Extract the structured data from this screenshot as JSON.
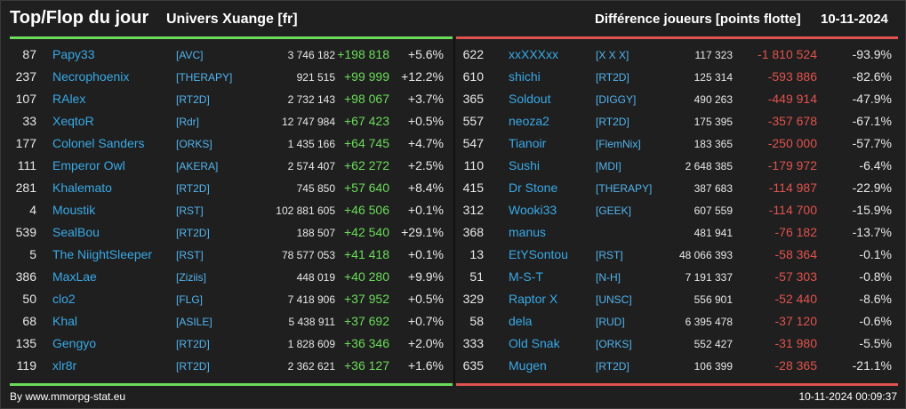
{
  "header": {
    "title": "Top/Flop du jour",
    "universe": "Univers Xuange [fr]",
    "metric": "Différence joueurs [points flotte]",
    "date": "10-11-2024"
  },
  "top": [
    {
      "rank": "87",
      "name": "Papy33",
      "alliance": "[AVC]",
      "points": "3 746 182",
      "diff": "+198 818",
      "pct": "+5.6%"
    },
    {
      "rank": "237",
      "name": "Necrophoenix",
      "alliance": "[THERAPY]",
      "points": "921 515",
      "diff": "+99 999",
      "pct": "+12.2%"
    },
    {
      "rank": "107",
      "name": "RAlex",
      "alliance": "[RT2D]",
      "points": "2 732 143",
      "diff": "+98 067",
      "pct": "+3.7%"
    },
    {
      "rank": "33",
      "name": "XeqtoR",
      "alliance": "[Rdr]",
      "points": "12 747 984",
      "diff": "+67 423",
      "pct": "+0.5%"
    },
    {
      "rank": "177",
      "name": "Colonel Sanders",
      "alliance": "[ORKS]",
      "points": "1 435 166",
      "diff": "+64 745",
      "pct": "+4.7%"
    },
    {
      "rank": "111",
      "name": "Emperor Owl",
      "alliance": "[AKERA]",
      "points": "2 574 407",
      "diff": "+62 272",
      "pct": "+2.5%"
    },
    {
      "rank": "281",
      "name": "Khalemato",
      "alliance": "[RT2D]",
      "points": "745 850",
      "diff": "+57 640",
      "pct": "+8.4%"
    },
    {
      "rank": "4",
      "name": "Moustik",
      "alliance": "[RST]",
      "points": "102 881 605",
      "diff": "+46 506",
      "pct": "+0.1%"
    },
    {
      "rank": "539",
      "name": "SealBou",
      "alliance": "[RT2D]",
      "points": "188 507",
      "diff": "+42 540",
      "pct": "+29.1%"
    },
    {
      "rank": "5",
      "name": "The NiightSleeper",
      "alliance": "[RST]",
      "points": "78 577 053",
      "diff": "+41 418",
      "pct": "+0.1%"
    },
    {
      "rank": "386",
      "name": "MaxLae",
      "alliance": "[Ziziis]",
      "points": "448 019",
      "diff": "+40 280",
      "pct": "+9.9%"
    },
    {
      "rank": "50",
      "name": "clo2",
      "alliance": "[FLG]",
      "points": "7 418 906",
      "diff": "+37 952",
      "pct": "+0.5%"
    },
    {
      "rank": "68",
      "name": "Khal",
      "alliance": "[ASILE]",
      "points": "5 438 911",
      "diff": "+37 692",
      "pct": "+0.7%"
    },
    {
      "rank": "135",
      "name": "Gengyo",
      "alliance": "[RT2D]",
      "points": "1 828 609",
      "diff": "+36 346",
      "pct": "+2.0%"
    },
    {
      "rank": "119",
      "name": "xlr8r",
      "alliance": "[RT2D]",
      "points": "2 362 621",
      "diff": "+36 127",
      "pct": "+1.6%"
    }
  ],
  "flop": [
    {
      "rank": "622",
      "name": "xxXXXxx",
      "alliance": "[X X X]",
      "points": "117 323",
      "diff": "-1 810 524",
      "pct": "-93.9%"
    },
    {
      "rank": "610",
      "name": "shichi",
      "alliance": "[RT2D]",
      "points": "125 314",
      "diff": "-593 886",
      "pct": "-82.6%"
    },
    {
      "rank": "365",
      "name": "Soldout",
      "alliance": "[DIGGY]",
      "points": "490 263",
      "diff": "-449 914",
      "pct": "-47.9%"
    },
    {
      "rank": "557",
      "name": "neoza2",
      "alliance": "[RT2D]",
      "points": "175 395",
      "diff": "-357 678",
      "pct": "-67.1%"
    },
    {
      "rank": "547",
      "name": "Tianoir",
      "alliance": "[FlemNix]",
      "points": "183 365",
      "diff": "-250 000",
      "pct": "-57.7%"
    },
    {
      "rank": "110",
      "name": "Sushi",
      "alliance": "[MDI]",
      "points": "2 648 385",
      "diff": "-179 972",
      "pct": "-6.4%"
    },
    {
      "rank": "415",
      "name": "Dr Stone",
      "alliance": "[THERAPY]",
      "points": "387 683",
      "diff": "-114 987",
      "pct": "-22.9%"
    },
    {
      "rank": "312",
      "name": "Wooki33",
      "alliance": "[GEEK]",
      "points": "607 559",
      "diff": "-114 700",
      "pct": "-15.9%"
    },
    {
      "rank": "368",
      "name": "manus",
      "alliance": "",
      "points": "481 941",
      "diff": "-76 182",
      "pct": "-13.7%"
    },
    {
      "rank": "13",
      "name": "EtYSontou",
      "alliance": "[RST]",
      "points": "48 066 393",
      "diff": "-58 364",
      "pct": "-0.1%"
    },
    {
      "rank": "51",
      "name": "M-S-T",
      "alliance": "[N-H]",
      "points": "7 191 337",
      "diff": "-57 303",
      "pct": "-0.8%"
    },
    {
      "rank": "329",
      "name": "Raptor X",
      "alliance": "[UNSC]",
      "points": "556 901",
      "diff": "-52 440",
      "pct": "-8.6%"
    },
    {
      "rank": "58",
      "name": "dela",
      "alliance": "[RUD]",
      "points": "6 395 478",
      "diff": "-37 120",
      "pct": "-0.6%"
    },
    {
      "rank": "333",
      "name": "Old Snak",
      "alliance": "[ORKS]",
      "points": "552 427",
      "diff": "-31 980",
      "pct": "-5.5%"
    },
    {
      "rank": "635",
      "name": "Mugen",
      "alliance": "[RT2D]",
      "points": "106 399",
      "diff": "-28 365",
      "pct": "-21.1%"
    }
  ],
  "footer": {
    "credit": "By www.mmorpg-stat.eu",
    "timestamp": "10-11-2024 00:09:37"
  },
  "colors": {
    "background": "#1f1f1f",
    "gain": "#6bdc5a",
    "loss": "#e0534e",
    "name": "#39a9e6",
    "text": "#e8e8e8"
  }
}
